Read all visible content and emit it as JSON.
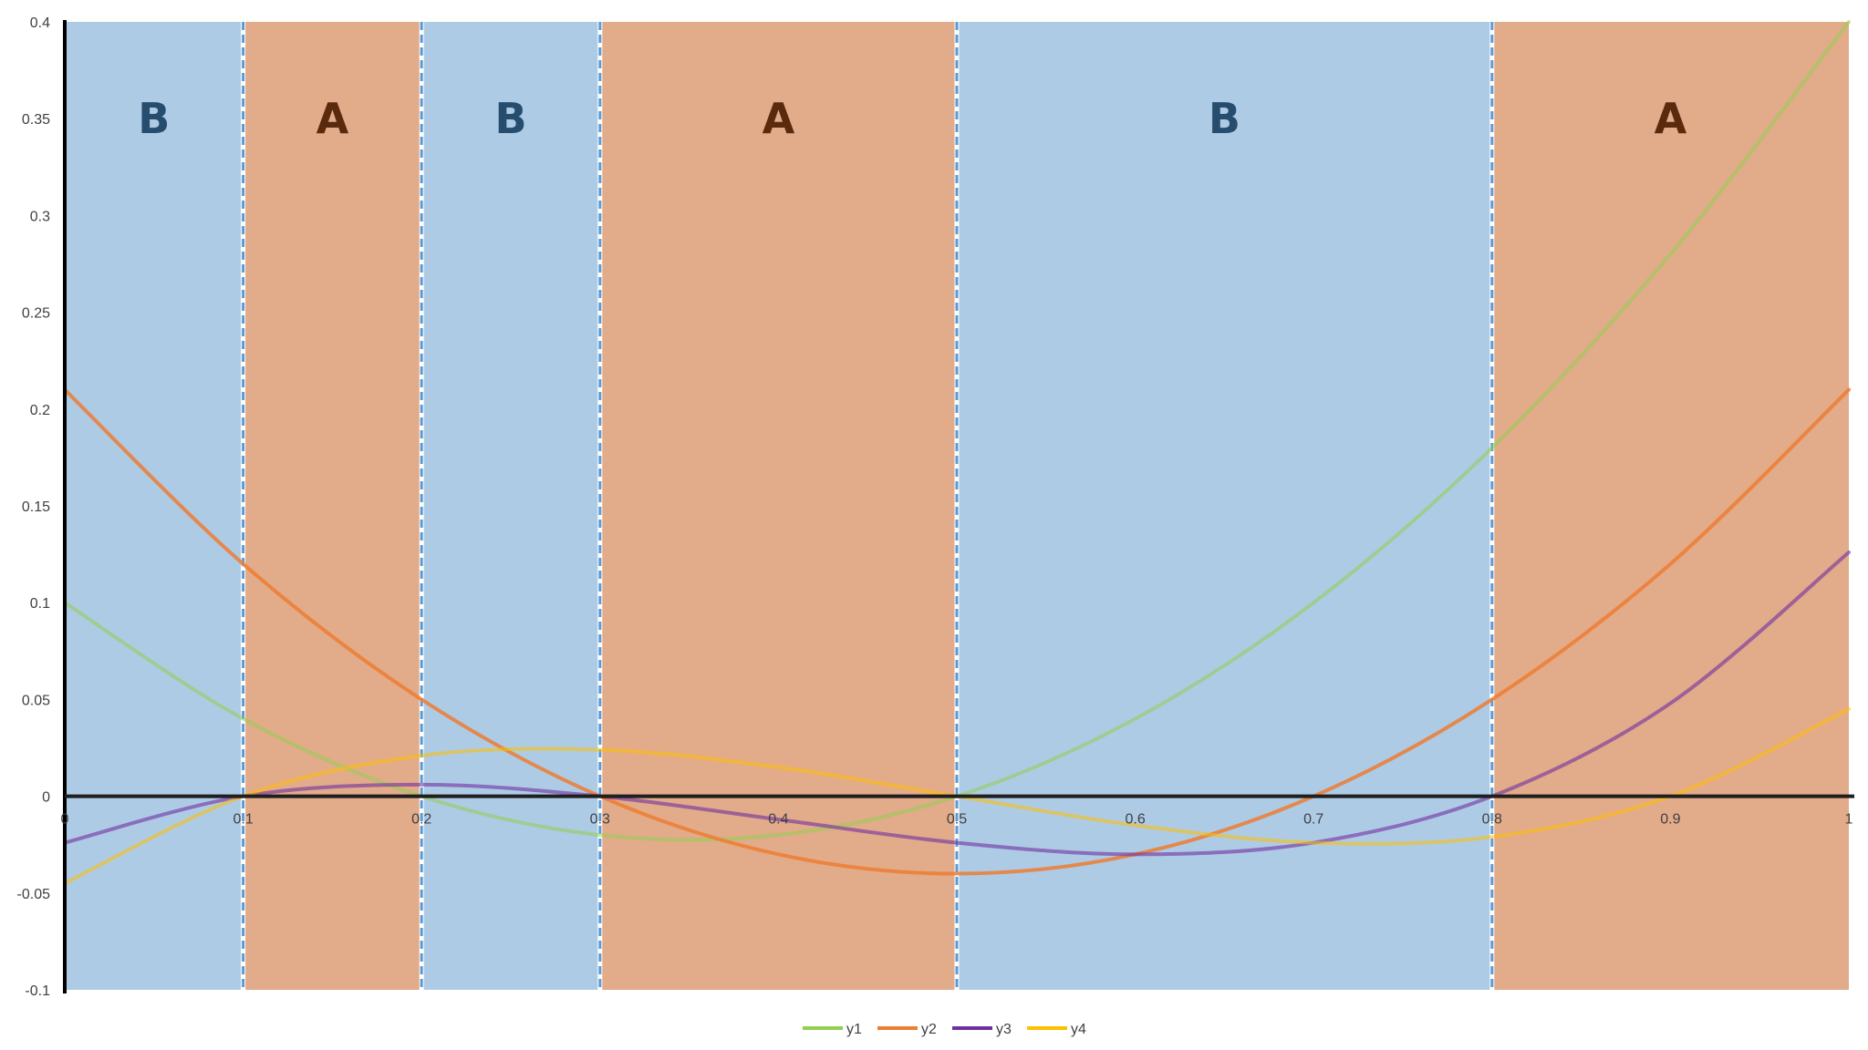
{
  "chart_data": {
    "type": "line",
    "title": "",
    "xlabel": "",
    "ylabel": "",
    "xlim": [
      0,
      1
    ],
    "ylim": [
      -0.1,
      0.4
    ],
    "x_ticks": [
      "0",
      "0.1",
      "0.2",
      "0.3",
      "0.4",
      "0.5",
      "0.6",
      "0.7",
      "0.8",
      "0.9",
      "1"
    ],
    "y_ticks": [
      "0.4",
      "0.35",
      "0.3",
      "0.25",
      "0.2",
      "0.15",
      "0.1",
      "0.05",
      "0",
      "-0.05",
      "-0.1"
    ],
    "grid": false,
    "legend_position": "bottom",
    "regions": [
      {
        "label": "B",
        "x_start": 0.0,
        "x_end": 0.1,
        "color": "#aecbe6",
        "text_color": "#264d6e"
      },
      {
        "label": "A",
        "x_start": 0.1,
        "x_end": 0.2,
        "color": "#e2ab8a",
        "text_color": "#5a2a0e"
      },
      {
        "label": "B",
        "x_start": 0.2,
        "x_end": 0.3,
        "color": "#aecbe6",
        "text_color": "#264d6e"
      },
      {
        "label": "A",
        "x_start": 0.3,
        "x_end": 0.5,
        "color": "#e2ab8a",
        "text_color": "#5a2a0e"
      },
      {
        "label": "B",
        "x_start": 0.5,
        "x_end": 0.8,
        "color": "#aecbe6",
        "text_color": "#264d6e"
      },
      {
        "label": "A",
        "x_start": 0.8,
        "x_end": 1.0,
        "color": "#e2ab8a",
        "text_color": "#5a2a0e"
      }
    ],
    "boundaries": [
      0.1,
      0.2,
      0.3,
      0.5,
      0.8
    ],
    "boundary_color": "#5b9bd5",
    "series": [
      {
        "name": "y1",
        "color": "#92d050",
        "opacity": 0.55,
        "x": [
          0,
          0.1,
          0.2,
          0.3,
          0.4,
          0.5,
          0.6,
          0.7,
          0.8,
          0.9,
          1.0
        ],
        "values": [
          0.1,
          0.04,
          0.0,
          -0.02,
          -0.02,
          0.0,
          0.04,
          0.1,
          0.18,
          0.28,
          0.4
        ]
      },
      {
        "name": "y2",
        "color": "#ed7d31",
        "opacity": 0.85,
        "x": [
          0,
          0.1,
          0.2,
          0.3,
          0.4,
          0.5,
          0.6,
          0.7,
          0.8,
          0.9,
          1.0
        ],
        "values": [
          0.21,
          0.12,
          0.05,
          0.0,
          -0.03,
          -0.04,
          -0.03,
          0.0,
          0.05,
          0.12,
          0.21
        ]
      },
      {
        "name": "y3",
        "color": "#7030a0",
        "opacity": 0.6,
        "x": [
          0,
          0.1,
          0.2,
          0.3,
          0.4,
          0.5,
          0.6,
          0.7,
          0.8,
          0.9,
          1.0
        ],
        "values": [
          -0.024,
          0.0,
          0.006,
          0.0,
          -0.012,
          -0.024,
          -0.03,
          -0.024,
          0.0,
          0.048,
          0.126
        ]
      },
      {
        "name": "y4",
        "color": "#ffc000",
        "opacity": 0.55,
        "x": [
          0,
          0.1,
          0.2,
          0.3,
          0.4,
          0.5,
          0.6,
          0.7,
          0.8,
          0.9,
          1.0
        ],
        "values": [
          -0.045,
          0.0,
          0.021,
          0.024,
          0.015,
          0.0,
          -0.015,
          -0.024,
          -0.021,
          0.0,
          0.045
        ]
      }
    ],
    "legend": [
      "y1",
      "y2",
      "y3",
      "y4"
    ]
  }
}
